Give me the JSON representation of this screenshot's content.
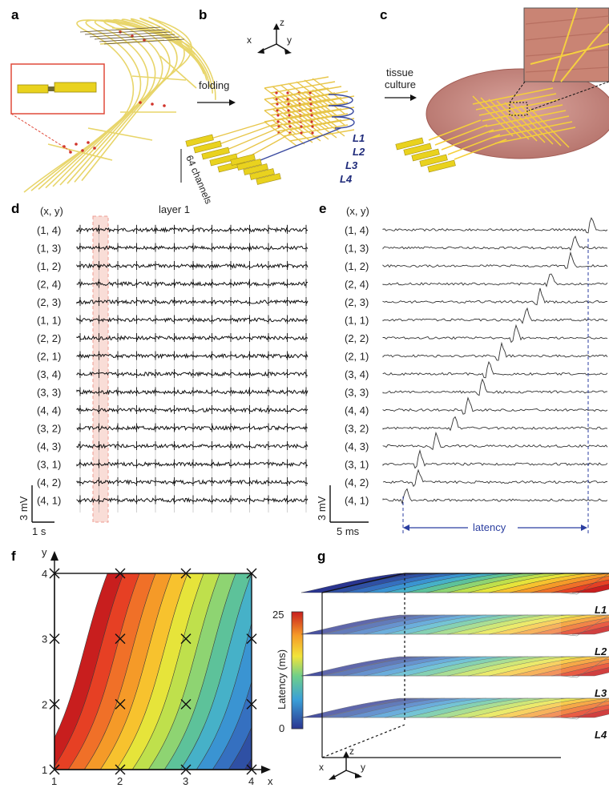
{
  "panels": {
    "a": "a",
    "b": "b",
    "c": "c",
    "d": "d",
    "e": "e",
    "f": "f",
    "g": "g"
  },
  "panel_b": {
    "axes": [
      "x",
      "y",
      "z"
    ],
    "arrow_label": "folding",
    "channels_label": "64 channels",
    "layers": [
      "L1",
      "L2",
      "L3",
      "L4"
    ]
  },
  "panel_c": {
    "arrow_label_1": "tissue",
    "arrow_label_2": "culture"
  },
  "panel_d": {
    "header": "(x, y)",
    "title": "layer 1",
    "rows": [
      "(1, 4)",
      "(1, 3)",
      "(1, 2)",
      "(2, 4)",
      "(2, 3)",
      "(1, 1)",
      "(2, 2)",
      "(2, 1)",
      "(3, 4)",
      "(3, 3)",
      "(4, 4)",
      "(3, 2)",
      "(4, 3)",
      "(3, 1)",
      "(4, 2)",
      "(4, 1)"
    ],
    "scale_v": "3 mV",
    "scale_t": "1 s"
  },
  "panel_e": {
    "header": "(x, y)",
    "rows": [
      "(1, 4)",
      "(1, 3)",
      "(1, 2)",
      "(2, 4)",
      "(2, 3)",
      "(1, 1)",
      "(2, 2)",
      "(2, 1)",
      "(3, 4)",
      "(3, 3)",
      "(4, 4)",
      "(3, 2)",
      "(4, 3)",
      "(3, 1)",
      "(4, 2)",
      "(4, 1)"
    ],
    "scale_v": "3 mV",
    "scale_t": "5 ms",
    "latency_label": "latency"
  },
  "chart_data": {
    "type": "heatmap",
    "title": "",
    "xlabel": "x",
    "ylabel": "y",
    "x_ticks": [
      "1",
      "2",
      "3",
      "4"
    ],
    "y_ticks": [
      "1",
      "2",
      "3",
      "4"
    ],
    "xlim": [
      1,
      4
    ],
    "ylim": [
      1,
      4
    ],
    "colorbar": {
      "label": "Latency (ms)",
      "min": 0,
      "max": 25,
      "min_label": "0",
      "max_label": "25",
      "colors": [
        "#2a3590",
        "#3aa0d8",
        "#6fcf8a",
        "#f2e43a",
        "#f59a28",
        "#c81e1e"
      ]
    },
    "electrodes": [
      [
        1,
        1
      ],
      [
        1,
        2
      ],
      [
        1,
        3
      ],
      [
        1,
        4
      ],
      [
        2,
        1
      ],
      [
        2,
        2
      ],
      [
        2,
        3
      ],
      [
        2,
        4
      ],
      [
        3,
        1
      ],
      [
        3,
        2
      ],
      [
        3,
        3
      ],
      [
        3,
        4
      ],
      [
        4,
        1
      ],
      [
        4,
        2
      ],
      [
        4,
        3
      ],
      [
        4,
        4
      ]
    ]
  },
  "panel_g": {
    "axes": [
      "x",
      "y",
      "z"
    ],
    "layers": [
      "L1",
      "L2",
      "L3",
      "L4"
    ]
  }
}
